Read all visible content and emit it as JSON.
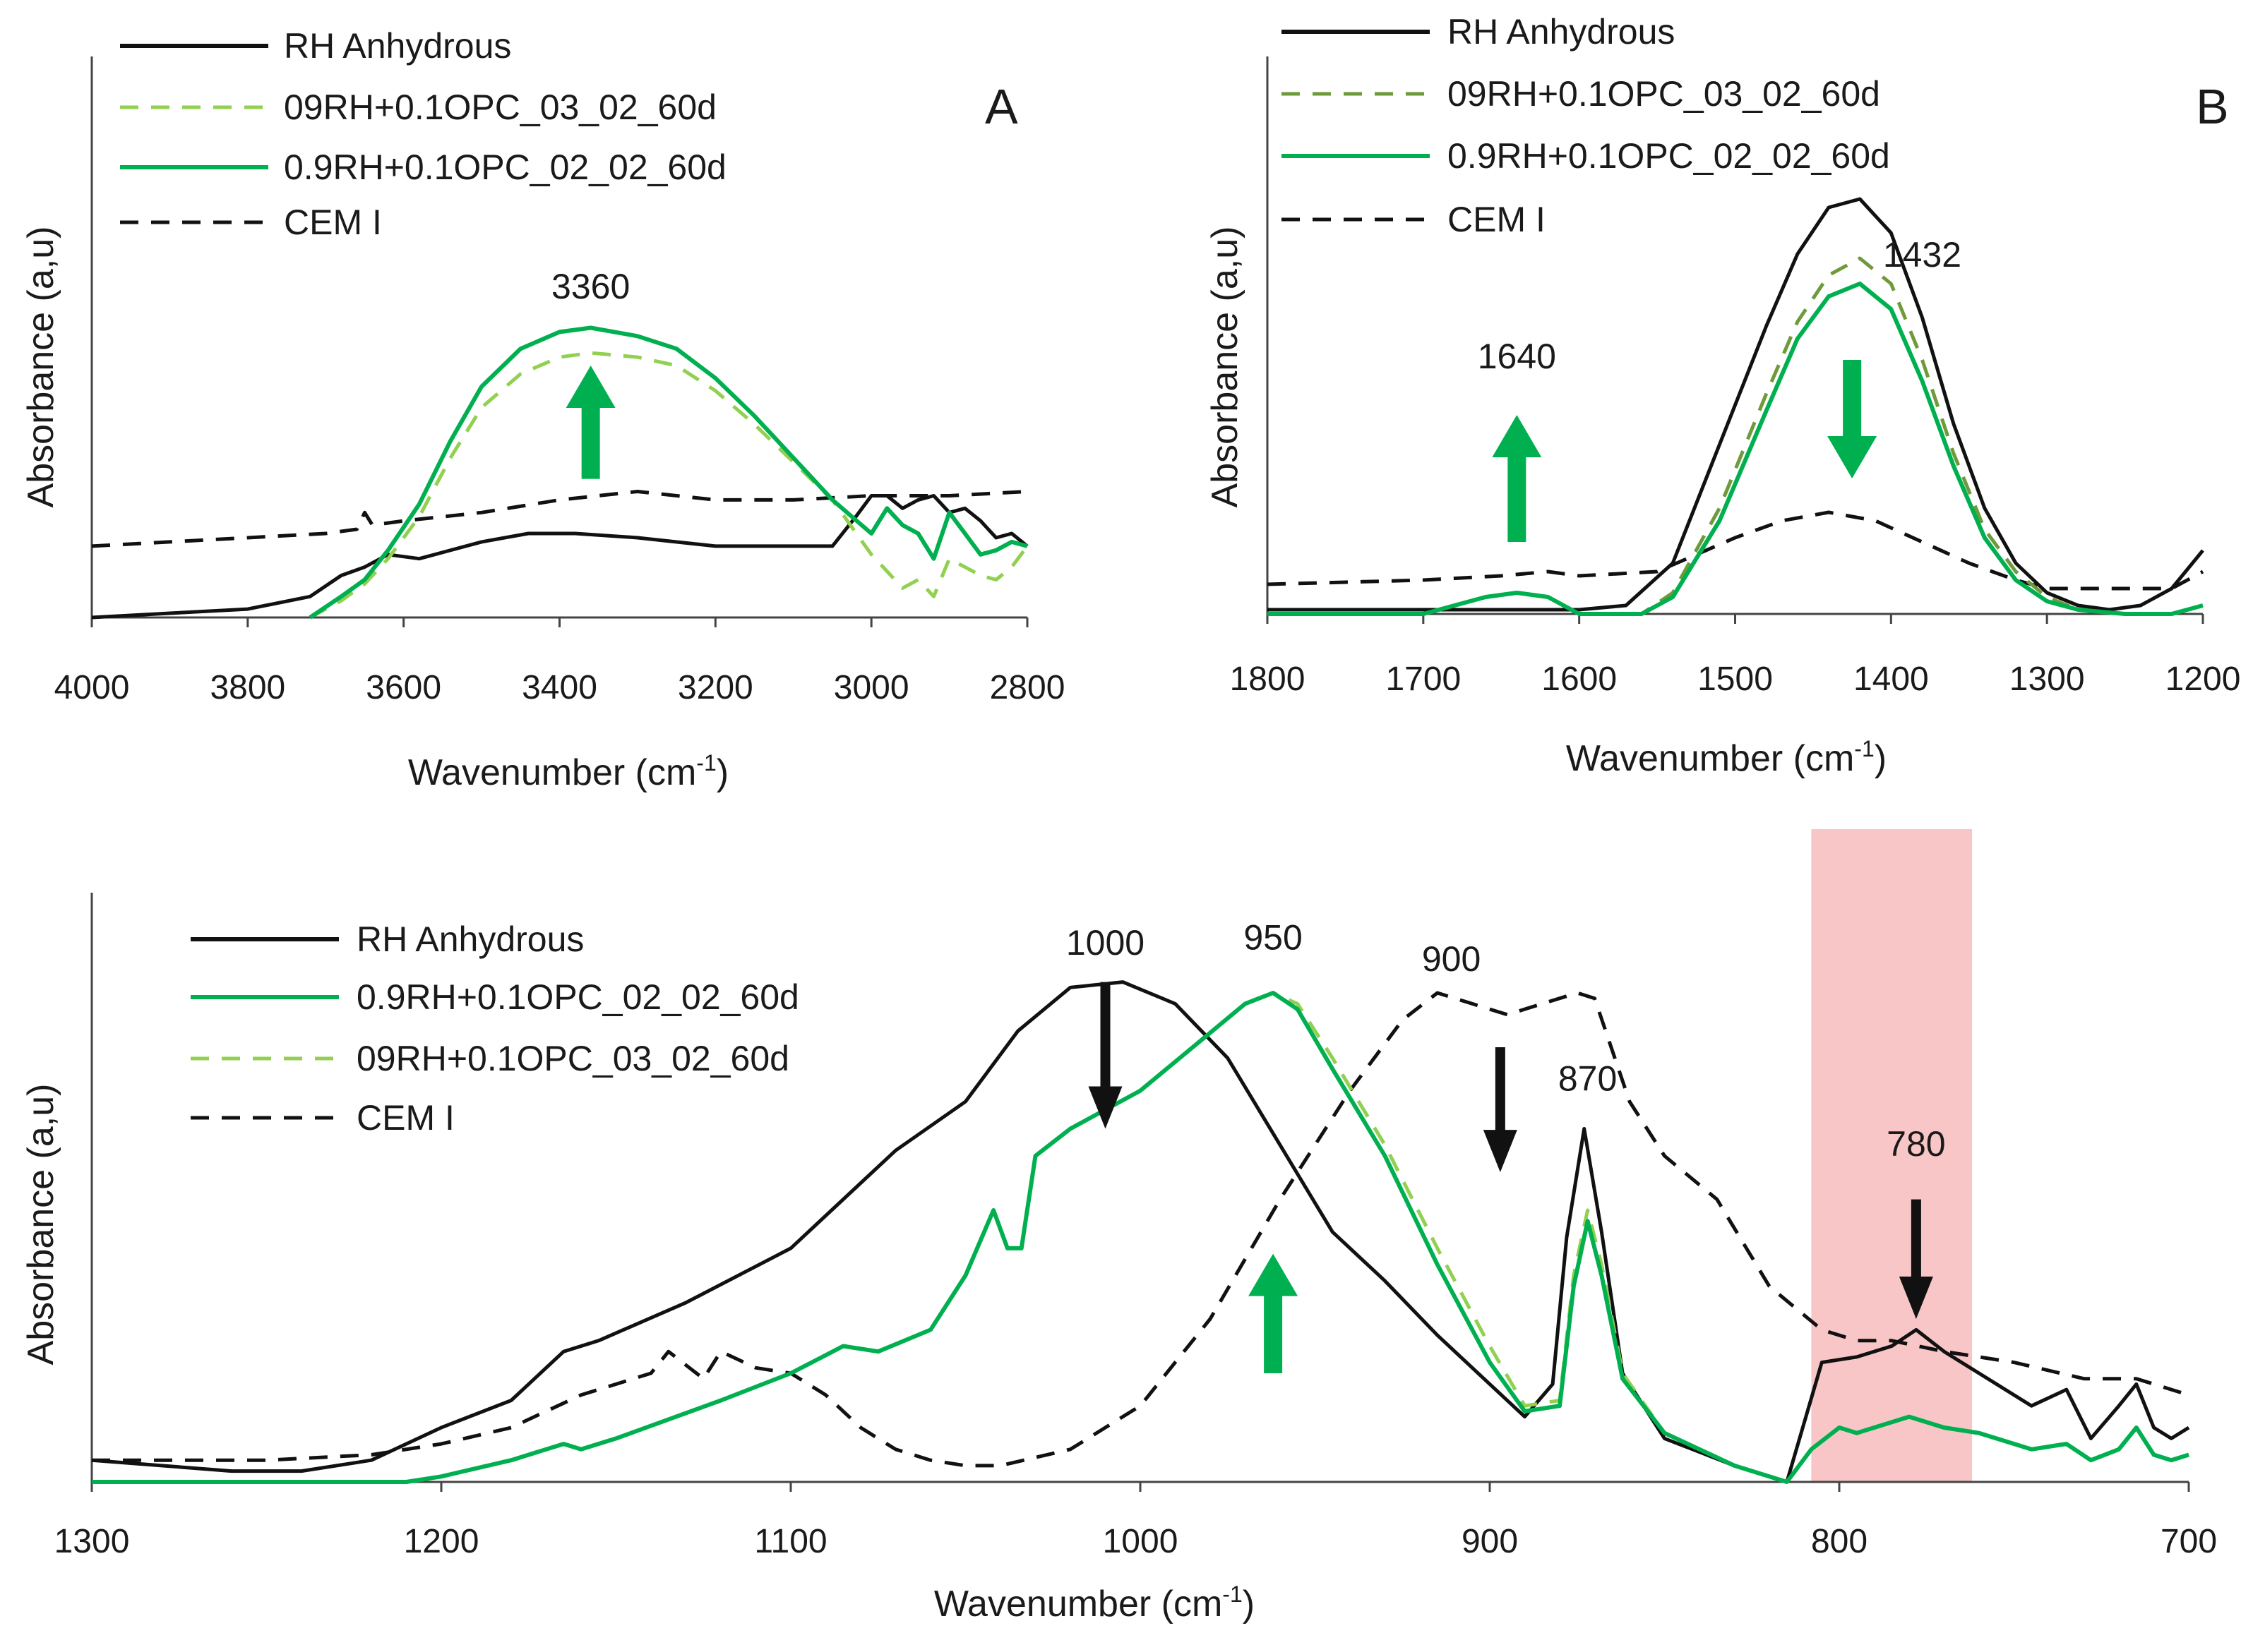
{
  "colors": {
    "black_solid": "#111111",
    "green_dashed": "#92d050",
    "olive_dashed": "#6f9a3a",
    "green_solid": "#00b050",
    "green_arrow": "#00b050",
    "black_arrow": "#111111",
    "highlight": "#f8c6c6"
  },
  "chart_data": [
    {
      "type": "line",
      "panel": "A",
      "xlabel": "Wavenumber (cm-1)",
      "xlabel_main": "Wavenumber (cm",
      "xlabel_sup": "-1",
      "xlabel_end": ")",
      "ylabel": "Absorbance (a,u)",
      "xlim": [
        4000,
        2800
      ],
      "ylim": [
        0,
        1
      ],
      "x_ticks": [
        4000,
        3800,
        3600,
        3400,
        3200,
        3000,
        2800
      ],
      "x_tick_labels": [
        "4000",
        "3800",
        "3600",
        "3400",
        "3200",
        "3000",
        "2800"
      ],
      "legend": [
        "RH Anhydrous",
        "09RH+0.1OPC_03_02_60d",
        "0.9RH+0.1OPC_02_02_60d",
        "CEM I"
      ],
      "annotations": [
        {
          "text": "3360",
          "x": 3360,
          "y": 0.76
        }
      ],
      "arrows": [
        {
          "x": 3360,
          "direction": "up",
          "color": "green",
          "y_from": 0.33,
          "y_to": 0.6
        }
      ],
      "series": [
        {
          "name": "RH Anhydrous",
          "style": "black_solid",
          "x": [
            4000,
            3900,
            3800,
            3720,
            3680,
            3650,
            3620,
            3580,
            3500,
            3440,
            3380,
            3300,
            3200,
            3100,
            3050,
            3020,
            3000,
            2980,
            2960,
            2940,
            2920,
            2900,
            2880,
            2860,
            2840,
            2820,
            2800
          ],
          "y": [
            0.0,
            0.01,
            0.02,
            0.05,
            0.1,
            0.12,
            0.15,
            0.14,
            0.18,
            0.2,
            0.2,
            0.19,
            0.17,
            0.17,
            0.17,
            0.24,
            0.29,
            0.29,
            0.26,
            0.28,
            0.29,
            0.25,
            0.26,
            0.23,
            0.19,
            0.2,
            0.17
          ]
        },
        {
          "name": "CEM I",
          "style": "black_dashed",
          "x": [
            4000,
            3900,
            3800,
            3700,
            3660,
            3650,
            3640,
            3600,
            3500,
            3400,
            3300,
            3200,
            3100,
            3000,
            2900,
            2800
          ],
          "y": [
            0.17,
            0.18,
            0.19,
            0.2,
            0.21,
            0.25,
            0.22,
            0.23,
            0.25,
            0.28,
            0.3,
            0.28,
            0.28,
            0.29,
            0.29,
            0.3
          ]
        },
        {
          "name": "09RH+0.1OPC_03_02_60d",
          "style": "green_dashed",
          "x": [
            3720,
            3680,
            3650,
            3620,
            3580,
            3540,
            3500,
            3450,
            3400,
            3360,
            3300,
            3250,
            3200,
            3150,
            3100,
            3050,
            3000,
            2980,
            2960,
            2940,
            2920,
            2900,
            2880,
            2860,
            2840,
            2820,
            2800
          ],
          "y": [
            0.0,
            0.04,
            0.08,
            0.14,
            0.24,
            0.38,
            0.5,
            0.58,
            0.62,
            0.63,
            0.62,
            0.6,
            0.54,
            0.46,
            0.37,
            0.28,
            0.15,
            0.11,
            0.07,
            0.09,
            0.05,
            0.14,
            0.12,
            0.1,
            0.09,
            0.12,
            0.17
          ]
        },
        {
          "name": "0.9RH+0.1OPC_02_02_60d",
          "style": "green_solid",
          "x": [
            3720,
            3680,
            3650,
            3620,
            3580,
            3540,
            3500,
            3450,
            3400,
            3360,
            3300,
            3250,
            3200,
            3150,
            3100,
            3050,
            3000,
            2980,
            2960,
            2940,
            2920,
            2900,
            2880,
            2860,
            2840,
            2820,
            2800
          ],
          "y": [
            0.0,
            0.05,
            0.09,
            0.16,
            0.27,
            0.42,
            0.55,
            0.64,
            0.68,
            0.69,
            0.67,
            0.64,
            0.57,
            0.48,
            0.38,
            0.28,
            0.2,
            0.26,
            0.22,
            0.2,
            0.14,
            0.25,
            0.2,
            0.15,
            0.16,
            0.18,
            0.17
          ]
        }
      ]
    },
    {
      "type": "line",
      "panel": "B",
      "xlabel": "Wavenumber (cm-1)",
      "xlabel_main": "Wavenumber (cm",
      "xlabel_sup": "-1",
      "xlabel_end": ")",
      "ylabel": "Absorbance (a,u)",
      "xlim": [
        1800,
        1200
      ],
      "ylim": [
        0,
        1
      ],
      "x_ticks": [
        1800,
        1700,
        1600,
        1500,
        1400,
        1300,
        1200
      ],
      "x_tick_labels": [
        "1800",
        "1700",
        "1600",
        "1500",
        "1400",
        "1300",
        "1200"
      ],
      "legend": [
        "RH Anhydrous",
        "09RH+0.1OPC_03_02_60d",
        "0.9RH+0.1OPC_02_02_60d",
        "CEM I"
      ],
      "annotations": [
        {
          "text": "1640",
          "x": 1640,
          "y": 0.58
        },
        {
          "text": "1432",
          "x": 1380,
          "y": 0.82
        }
      ],
      "arrows": [
        {
          "x": 1640,
          "direction": "up",
          "color": "green",
          "y_from": 0.17,
          "y_to": 0.47
        },
        {
          "x": 1425,
          "direction": "down",
          "color": "green",
          "y_from": 0.6,
          "y_to": 0.32
        }
      ],
      "series": [
        {
          "name": "RH Anhydrous",
          "style": "black_solid",
          "x": [
            1800,
            1700,
            1600,
            1570,
            1540,
            1510,
            1480,
            1460,
            1440,
            1420,
            1400,
            1380,
            1360,
            1340,
            1320,
            1300,
            1280,
            1260,
            1240,
            1220,
            1200
          ],
          "y": [
            0.01,
            0.01,
            0.01,
            0.02,
            0.12,
            0.4,
            0.68,
            0.85,
            0.96,
            0.98,
            0.9,
            0.7,
            0.45,
            0.25,
            0.12,
            0.05,
            0.02,
            0.01,
            0.02,
            0.06,
            0.15
          ]
        },
        {
          "name": "CEM I",
          "style": "black_dashed",
          "x": [
            1800,
            1700,
            1650,
            1620,
            1600,
            1550,
            1500,
            1470,
            1440,
            1410,
            1380,
            1350,
            1320,
            1300,
            1260,
            1220,
            1200
          ],
          "y": [
            0.07,
            0.08,
            0.09,
            0.1,
            0.09,
            0.1,
            0.18,
            0.22,
            0.24,
            0.22,
            0.17,
            0.12,
            0.08,
            0.06,
            0.06,
            0.06,
            0.1
          ]
        },
        {
          "name": "09RH+0.1OPC_03_02_60d",
          "style": "olive_dashed",
          "x": [
            1800,
            1700,
            1660,
            1640,
            1620,
            1600,
            1560,
            1540,
            1510,
            1480,
            1460,
            1440,
            1420,
            1400,
            1380,
            1360,
            1340,
            1320,
            1300,
            1280,
            1250,
            1220,
            1200
          ],
          "y": [
            0.0,
            0.0,
            0.04,
            0.05,
            0.04,
            0.0,
            0.0,
            0.05,
            0.25,
            0.52,
            0.69,
            0.8,
            0.84,
            0.78,
            0.6,
            0.38,
            0.2,
            0.1,
            0.04,
            0.01,
            0.0,
            0.0,
            0.02
          ]
        },
        {
          "name": "0.9RH+0.1OPC_02_02_60d",
          "style": "green_solid",
          "x": [
            1800,
            1700,
            1660,
            1640,
            1620,
            1600,
            1560,
            1540,
            1510,
            1480,
            1460,
            1440,
            1420,
            1400,
            1380,
            1360,
            1340,
            1320,
            1300,
            1280,
            1250,
            1220,
            1200
          ],
          "y": [
            0.0,
            0.0,
            0.04,
            0.05,
            0.04,
            0.0,
            0.0,
            0.04,
            0.22,
            0.48,
            0.65,
            0.75,
            0.78,
            0.72,
            0.55,
            0.35,
            0.18,
            0.08,
            0.03,
            0.01,
            0.0,
            0.0,
            0.02
          ]
        }
      ]
    },
    {
      "type": "line",
      "panel": "C",
      "xlabel": "Wavenumber (cm-1)",
      "xlabel_main": "Wavenumber (cm",
      "xlabel_sup": "-1",
      "xlabel_end": ")",
      "ylabel": "Absorbance (a,u)",
      "xlim": [
        1300,
        700
      ],
      "ylim": [
        0,
        1
      ],
      "x_ticks": [
        1300,
        1200,
        1100,
        1000,
        900,
        800,
        700
      ],
      "x_tick_labels": [
        "1300",
        "1200",
        "1100",
        "1000",
        "900",
        "800",
        "700"
      ],
      "legend": [
        "RH Anhydrous",
        "0.9RH+0.1OPC_02_02_60d",
        "09RH+0.1OPC_03_02_60d",
        "CEM I"
      ],
      "annotations": [
        {
          "text": "1000",
          "x": 1010,
          "y": 0.97
        },
        {
          "text": "950",
          "x": 962,
          "y": 0.98
        },
        {
          "text": "900",
          "x": 911,
          "y": 0.94
        },
        {
          "text": "870",
          "x": 872,
          "y": 0.72
        },
        {
          "text": "780",
          "x": 778,
          "y": 0.6
        }
      ],
      "arrows": [
        {
          "x": 1010,
          "direction": "down",
          "color": "black",
          "y_from": 0.92,
          "y_to": 0.65
        },
        {
          "x": 962,
          "direction": "up",
          "color": "green",
          "y_from": 0.2,
          "y_to": 0.42
        },
        {
          "x": 897,
          "direction": "down",
          "color": "black",
          "y_from": 0.8,
          "y_to": 0.57
        },
        {
          "x": 778,
          "direction": "down",
          "color": "black",
          "y_from": 0.52,
          "y_to": 0.3
        }
      ],
      "highlight": {
        "x_from": 808,
        "x_to": 762
      },
      "series": [
        {
          "name": "RH Anhydrous",
          "style": "black_solid",
          "x": [
            1300,
            1260,
            1240,
            1220,
            1200,
            1180,
            1165,
            1155,
            1130,
            1100,
            1080,
            1070,
            1050,
            1035,
            1020,
            1005,
            990,
            975,
            960,
            945,
            930,
            915,
            900,
            890,
            882,
            878,
            873,
            868,
            862,
            850,
            830,
            815,
            805,
            795,
            785,
            778,
            770,
            760,
            745,
            735,
            728,
            720,
            715,
            710,
            705,
            700
          ],
          "y": [
            0.04,
            0.02,
            0.02,
            0.04,
            0.1,
            0.15,
            0.24,
            0.26,
            0.33,
            0.43,
            0.55,
            0.61,
            0.7,
            0.83,
            0.91,
            0.92,
            0.88,
            0.78,
            0.62,
            0.46,
            0.37,
            0.27,
            0.18,
            0.12,
            0.18,
            0.45,
            0.65,
            0.46,
            0.2,
            0.08,
            0.03,
            0.0,
            0.22,
            0.23,
            0.25,
            0.28,
            0.24,
            0.2,
            0.14,
            0.17,
            0.08,
            0.14,
            0.18,
            0.1,
            0.08,
            0.1
          ]
        },
        {
          "name": "CEM I",
          "style": "black_dashed",
          "x": [
            1300,
            1250,
            1220,
            1200,
            1180,
            1160,
            1140,
            1135,
            1125,
            1120,
            1110,
            1100,
            1090,
            1080,
            1070,
            1060,
            1050,
            1040,
            1020,
            1000,
            980,
            960,
            940,
            925,
            915,
            905,
            900,
            895,
            885,
            875,
            870,
            860,
            850,
            835,
            820,
            805,
            795,
            785,
            770,
            750,
            730,
            715,
            705,
            700
          ],
          "y": [
            0.04,
            0.04,
            0.05,
            0.07,
            0.1,
            0.16,
            0.2,
            0.24,
            0.19,
            0.24,
            0.21,
            0.2,
            0.16,
            0.1,
            0.06,
            0.04,
            0.03,
            0.03,
            0.06,
            0.14,
            0.3,
            0.52,
            0.72,
            0.85,
            0.9,
            0.88,
            0.87,
            0.86,
            0.88,
            0.9,
            0.89,
            0.7,
            0.6,
            0.52,
            0.36,
            0.28,
            0.26,
            0.26,
            0.24,
            0.22,
            0.19,
            0.19,
            0.17,
            0.16
          ]
        },
        {
          "name": "09RH+0.1OPC_03_02_60d",
          "style": "green_dashed",
          "x": [
            1300,
            1210,
            1200,
            1180,
            1165,
            1160,
            1150,
            1120,
            1100,
            1085,
            1075,
            1060,
            1050,
            1042,
            1038,
            1034,
            1030,
            1020,
            1000,
            985,
            970,
            962,
            955,
            945,
            930,
            915,
            900,
            890,
            880,
            876,
            872,
            868,
            862,
            850,
            830,
            815,
            808,
            800,
            795,
            780,
            770,
            760,
            745,
            735,
            728,
            720,
            715,
            710,
            705,
            700
          ],
          "y": [
            0.0,
            0.0,
            0.01,
            0.04,
            0.07,
            0.06,
            0.08,
            0.15,
            0.2,
            0.25,
            0.24,
            0.28,
            0.38,
            0.5,
            0.43,
            0.43,
            0.6,
            0.65,
            0.72,
            0.8,
            0.88,
            0.9,
            0.88,
            0.78,
            0.62,
            0.43,
            0.25,
            0.14,
            0.15,
            0.38,
            0.5,
            0.4,
            0.2,
            0.09,
            0.03,
            0.0,
            0.06,
            0.1,
            0.09,
            0.12,
            0.1,
            0.09,
            0.06,
            0.07,
            0.04,
            0.06,
            0.1,
            0.05,
            0.04,
            0.05
          ]
        },
        {
          "name": "0.9RH+0.1OPC_02_02_60d",
          "style": "green_solid",
          "x": [
            1300,
            1210,
            1200,
            1180,
            1165,
            1160,
            1150,
            1120,
            1100,
            1085,
            1075,
            1060,
            1050,
            1042,
            1038,
            1034,
            1030,
            1020,
            1000,
            985,
            970,
            962,
            955,
            945,
            930,
            915,
            900,
            890,
            880,
            876,
            872,
            868,
            862,
            850,
            830,
            815,
            808,
            800,
            795,
            780,
            770,
            760,
            745,
            735,
            728,
            720,
            715,
            710,
            705,
            700
          ],
          "y": [
            0.0,
            0.0,
            0.01,
            0.04,
            0.07,
            0.06,
            0.08,
            0.15,
            0.2,
            0.25,
            0.24,
            0.28,
            0.38,
            0.5,
            0.43,
            0.43,
            0.6,
            0.65,
            0.72,
            0.8,
            0.88,
            0.9,
            0.87,
            0.76,
            0.6,
            0.4,
            0.22,
            0.13,
            0.14,
            0.36,
            0.48,
            0.38,
            0.19,
            0.09,
            0.03,
            0.0,
            0.06,
            0.1,
            0.09,
            0.12,
            0.1,
            0.09,
            0.06,
            0.07,
            0.04,
            0.06,
            0.1,
            0.05,
            0.04,
            0.05
          ]
        }
      ]
    }
  ]
}
